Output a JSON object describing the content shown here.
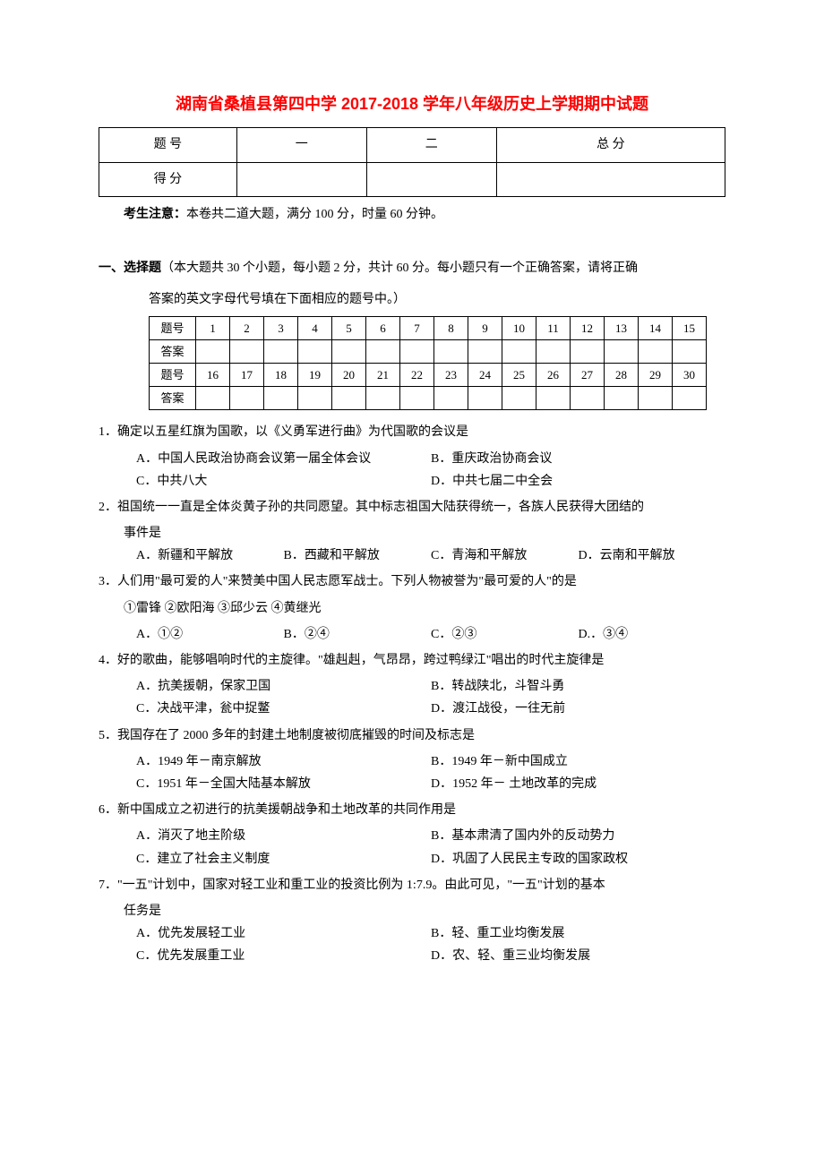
{
  "title": "湖南省桑植县第四中学 2017-2018 学年八年级历史上学期期中试题",
  "score_table": {
    "row1": {
      "c1": "题 号",
      "c2": "一",
      "c3": "二",
      "c4": "总 分"
    },
    "row2": {
      "c1": "得 分",
      "c2": "",
      "c3": "",
      "c4": ""
    }
  },
  "note_label": "考生注意：",
  "note_text": "本卷共二道大题，满分 100 分，时量 60 分钟。",
  "section1_label": "一、选择题",
  "section1_desc": "（本大题共 30 个小题，每小题 2 分，共计 60 分。每小题只有一个正确答案，请将正确",
  "section1_desc2": "答案的英文字母代号填在下面相应的题号中。）",
  "answer_table": {
    "r1": [
      "题号",
      "1",
      "2",
      "3",
      "4",
      "5",
      "6",
      "7",
      "8",
      "9",
      "10",
      "11",
      "12",
      "13",
      "14",
      "15"
    ],
    "r2": [
      "答案",
      "",
      "",
      "",
      "",
      "",
      "",
      "",
      "",
      "",
      "",
      "",
      "",
      "",
      "",
      ""
    ],
    "r3": [
      "题号",
      "16",
      "17",
      "18",
      "19",
      "20",
      "21",
      "22",
      "23",
      "24",
      "25",
      "26",
      "27",
      "28",
      "29",
      "30"
    ],
    "r4": [
      "答案",
      "",
      "",
      "",
      "",
      "",
      "",
      "",
      "",
      "",
      "",
      "",
      "",
      "",
      "",
      ""
    ]
  },
  "q1": {
    "text": "1．确定以五星红旗为国歌，以《义勇军进行曲》为代国歌的会议是",
    "a": "A．中国人民政治协商会议第一届全体会议",
    "b": "B．重庆政治协商会议",
    "c": "C．中共八大",
    "d": "D．中共七届二中全会"
  },
  "q2": {
    "text": "2．祖国统一一直是全体炎黄子孙的共同愿望。其中标志祖国大陆获得统一，各族人民获得大团结的",
    "text2": "事件是",
    "a": "A．新疆和平解放",
    "b": "B．西藏和平解放",
    "c": "C．青海和平解放",
    "d": "D．云南和平解放"
  },
  "q3": {
    "text": "3．人们用\"最可爱的人\"来赞美中国人民志愿军战士。下列人物被誉为\"最可爱的人\"的是",
    "sub": "①雷锋    ②欧阳海    ③邱少云    ④黄继光",
    "a": "A．①②",
    "b": "B．②④",
    "c": "C．②③",
    "d": "D.．③④"
  },
  "q4": {
    "text": "4．好的歌曲，能够唱响时代的主旋律。\"雄赳赳，气昂昂，跨过鸭绿江\"唱出的时代主旋律是",
    "a": "A．抗美援朝，保家卫国",
    "b": "B．转战陕北，斗智斗勇",
    "c": "C．决战平津，瓮中捉鳖",
    "d": "D．渡江战役，一往无前"
  },
  "q5": {
    "text": "5．我国存在了 2000 多年的封建土地制度被彻底摧毁的时间及标志是",
    "a": "A．1949 年－南京解放",
    "b": "B．1949 年－新中国成立",
    "c": "C．1951 年－全国大陆基本解放",
    "d": "D．1952 年－ 土地改革的完成"
  },
  "q6": {
    "text": "6．新中国成立之初进行的抗美援朝战争和土地改革的共同作用是",
    "a": "A．消灭了地主阶级",
    "b": "B．基本肃清了国内外的反动势力",
    "c": "C．建立了社会主义制度",
    "d": "D．巩固了人民民主专政的国家政权"
  },
  "q7": {
    "text": "7．\"一五\"计划中，国家对轻工业和重工业的投资比例为 1:7.9。由此可见，\"一五\"计划的基本",
    "text2": "任务是",
    "a": "A．优先发展轻工业",
    "b": "B．轻、重工业均衡发展",
    "c": "C．优先发展重工业",
    "d": "D．农、轻、重三业均衡发展"
  }
}
